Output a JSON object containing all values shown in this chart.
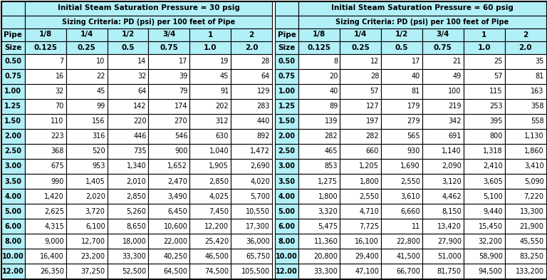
{
  "header1_30": "Initial Steam Saturation Pressure = 30 psig",
  "header2_30": "Sizing Criteria: PD (psi) per 100 feet of Pipe",
  "header1_60": "Initial Steam Saturation Pressure = 60 psig",
  "header2_60": "Sizing Criteria: PD (psi) per 100 feet of Pipe",
  "pipe_label": "Pipe",
  "size_label": "Size",
  "pd_labels": [
    "1/8",
    "1/4",
    "1/2",
    "3/4",
    "1",
    "2"
  ],
  "pd_values": [
    "0.125",
    "0.25",
    "0.5",
    "0.75",
    "1.0",
    "2.0"
  ],
  "pipe_sizes": [
    "0.50",
    "0.75",
    "1.00",
    "1.25",
    "1.50",
    "2.00",
    "2.50",
    "3.00",
    "3.50",
    "4.00",
    "5.00",
    "6.00",
    "8.00",
    "10.00",
    "12.00"
  ],
  "data_30": [
    [
      7,
      10,
      14,
      17,
      19,
      28
    ],
    [
      16,
      22,
      32,
      39,
      45,
      64
    ],
    [
      32,
      45,
      64,
      79,
      91,
      129
    ],
    [
      70,
      99,
      142,
      174,
      202,
      283
    ],
    [
      110,
      156,
      220,
      270,
      312,
      440
    ],
    [
      223,
      316,
      446,
      546,
      630,
      892
    ],
    [
      368,
      520,
      735,
      900,
      1040,
      1472
    ],
    [
      675,
      953,
      1340,
      1652,
      1905,
      2690
    ],
    [
      990,
      1405,
      2010,
      2470,
      2850,
      4020
    ],
    [
      1420,
      2020,
      2850,
      3490,
      4025,
      5700
    ],
    [
      2625,
      3720,
      5260,
      6450,
      7450,
      10550
    ],
    [
      4315,
      6100,
      8650,
      10600,
      12200,
      17300
    ],
    [
      9000,
      12700,
      18000,
      22000,
      25420,
      36000
    ],
    [
      16400,
      23200,
      33300,
      40250,
      46500,
      65750
    ],
    [
      26350,
      37250,
      52500,
      64500,
      74500,
      105500
    ]
  ],
  "data_60": [
    [
      8,
      12,
      17,
      21,
      25,
      35
    ],
    [
      20,
      28,
      40,
      49,
      57,
      81
    ],
    [
      40,
      57,
      81,
      100,
      115,
      163
    ],
    [
      89,
      127,
      179,
      219,
      253,
      358
    ],
    [
      139,
      197,
      279,
      342,
      395,
      558
    ],
    [
      282,
      282,
      565,
      691,
      800,
      1130
    ],
    [
      465,
      660,
      930,
      1140,
      1318,
      1860
    ],
    [
      853,
      1205,
      1690,
      2090,
      2410,
      3410
    ],
    [
      1275,
      1800,
      2550,
      3120,
      3605,
      5090
    ],
    [
      1800,
      2550,
      3610,
      4462,
      5100,
      7220
    ],
    [
      3320,
      4710,
      6660,
      8150,
      9440,
      13300
    ],
    [
      5475,
      7725,
      11,
      13420,
      15450,
      21900
    ],
    [
      11360,
      16100,
      22800,
      27900,
      32200,
      45550
    ],
    [
      20800,
      29400,
      41500,
      51000,
      58900,
      83250
    ],
    [
      33300,
      47100,
      66700,
      81750,
      94500,
      133200
    ]
  ],
  "bg_cyan": "#b2f0f7",
  "bg_white": "#ffffff",
  "border_color": "#000000",
  "text_color": "#000000"
}
